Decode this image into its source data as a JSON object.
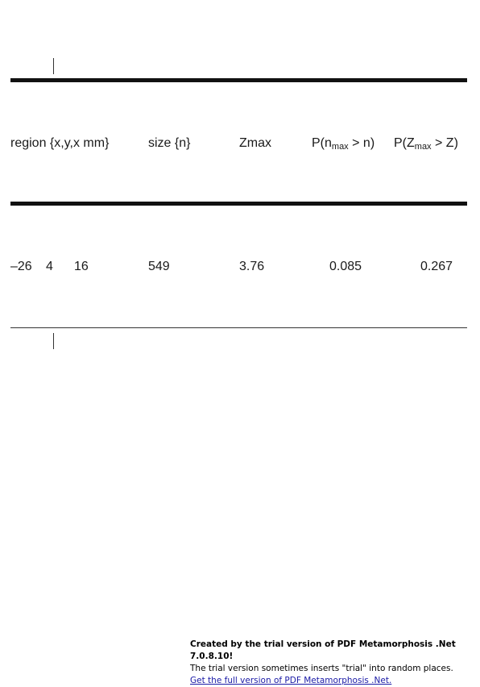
{
  "table": {
    "headers": {
      "region": "region {x,y,x mm}",
      "size": "size {n}",
      "zmax": "Zmax",
      "pn_prefix": "P(n",
      "pn_sub": "max",
      "pn_suffix": " > n)",
      "pz_prefix": "P(Z",
      "pz_sub": "max",
      "pz_suffix": " > Z)"
    },
    "rows": [
      {
        "x": "–26",
        "y": "4",
        "z": "16",
        "size": "549",
        "zmax": "3.76",
        "p_n": "0.085",
        "p_z": "0.267"
      }
    ]
  },
  "footer": {
    "line1": "Created by the trial version of PDF Metamorphosis .Net 7.0.8.10!",
    "line2": "The trial version sometimes inserts \"trial\" into random places.",
    "link": "Get the full version of PDF Metamorphosis .Net."
  }
}
